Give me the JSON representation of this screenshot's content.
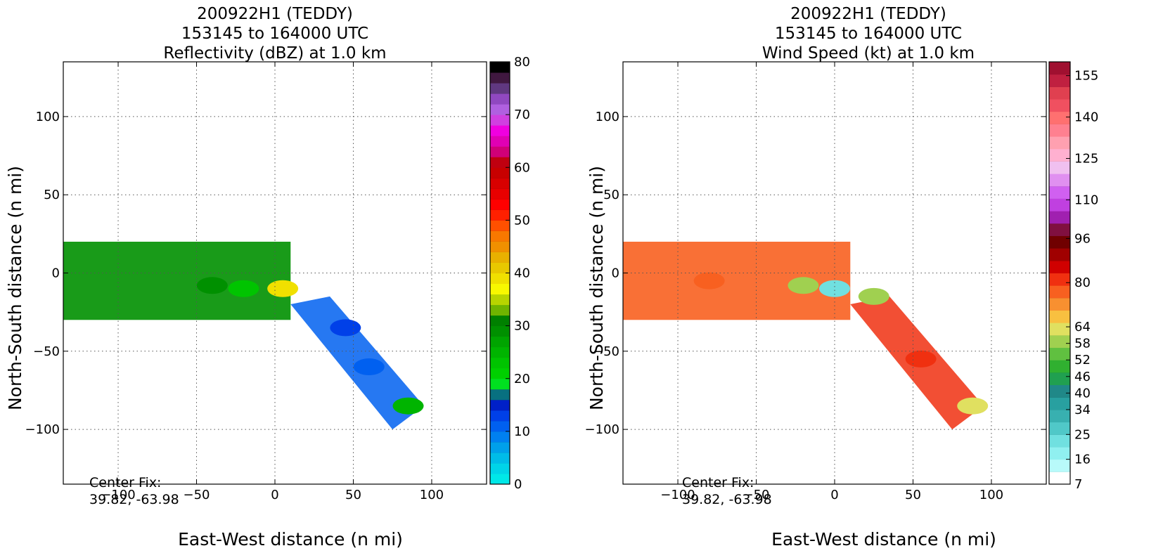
{
  "chart_data": [
    {
      "type": "heatmap",
      "title": [
        "200922H1 (TEDDY)",
        "153145 to 164000 UTC",
        "Reflectivity (dBZ) at 1.0 km"
      ],
      "xlabel": "East-West distance (n mi)",
      "ylabel": "North-South distance (n mi)",
      "xlim": [
        -135,
        135
      ],
      "ylim": [
        -135,
        135
      ],
      "xticks": [
        -100,
        -50,
        0,
        50,
        100
      ],
      "xtick_labels": [
        "−100",
        "−50",
        "0",
        "50",
        "100"
      ],
      "yticks": [
        100,
        50,
        0,
        -50,
        -100
      ],
      "ytick_labels": [
        "100",
        "50",
        "0",
        "−50",
        "−100"
      ],
      "grid": true,
      "annotation": [
        "Center Fix:",
        "39.82, -63.98"
      ],
      "colorbar": {
        "min": 0,
        "max": 80,
        "tick_values": [
          0,
          10,
          20,
          30,
          40,
          50,
          60,
          70,
          80
        ],
        "tick_labels": [
          "0",
          "10",
          "20",
          "30",
          "40",
          "50",
          "60",
          "70",
          "80"
        ],
        "colors": [
          "#00e8e8",
          "#00d4e8",
          "#00bce8",
          "#00a0ea",
          "#0080f0",
          "#0060f0",
          "#0040e8",
          "#0020c8",
          "#087080",
          "#00e020",
          "#00d000",
          "#00c400",
          "#00b400",
          "#00a400",
          "#009000",
          "#008000",
          "#70b400",
          "#b8d400",
          "#f8f800",
          "#f0e000",
          "#e8c800",
          "#e8b000",
          "#f09000",
          "#f87800",
          "#ff5000",
          "#ff2000",
          "#ff0000",
          "#e80000",
          "#d80000",
          "#c80000",
          "#c00010",
          "#d00078",
          "#e000b4",
          "#f000e0",
          "#d040e0",
          "#b060e0",
          "#9048c0",
          "#603880",
          "#401840",
          "#000000"
        ]
      },
      "data_region": {
        "band": {
          "x": [
            -135,
            10
          ],
          "y": [
            -30,
            20
          ]
        },
        "arm": {
          "x": [
            10,
            95
          ],
          "y": [
            -100,
            -20
          ]
        },
        "features": [
          {
            "x": -40,
            "y": -8,
            "value": 28
          },
          {
            "x": -20,
            "y": -10,
            "value": 22
          },
          {
            "x": 5,
            "y": -10,
            "value": 38
          },
          {
            "x": 45,
            "y": -35,
            "value": 12
          },
          {
            "x": 60,
            "y": -60,
            "value": 10
          },
          {
            "x": 85,
            "y": -85,
            "value": 25
          }
        ]
      }
    },
    {
      "type": "heatmap",
      "title": [
        "200922H1 (TEDDY)",
        "153145 to 164000 UTC",
        "Wind Speed (kt) at 1.0 km"
      ],
      "xlabel": "East-West distance (n mi)",
      "ylabel": "North-South distance (n mi)",
      "xlim": [
        -135,
        135
      ],
      "ylim": [
        -135,
        135
      ],
      "xticks": [
        -100,
        -50,
        0,
        50,
        100
      ],
      "xtick_labels": [
        "−100",
        "−50",
        "0",
        "50",
        "100"
      ],
      "yticks": [
        100,
        50,
        0,
        -50,
        -100
      ],
      "ytick_labels": [
        "100",
        "50",
        "0",
        "−50",
        "−100"
      ],
      "grid": true,
      "annotation": [
        "Center Fix:",
        "39.82, -63.98"
      ],
      "colorbar": {
        "min": 7,
        "max": 160,
        "tick_values": [
          7,
          16,
          25,
          34,
          40,
          46,
          52,
          58,
          64,
          80,
          96,
          110,
          125,
          140,
          155
        ],
        "tick_labels": [
          "7",
          "16",
          "25",
          "34",
          "40",
          "46",
          "52",
          "58",
          "64",
          "80",
          "96",
          "110",
          "125",
          "140",
          "155"
        ],
        "colors": [
          "#ffffff",
          "#b8fafa",
          "#90f0f0",
          "#70e0e0",
          "#50c8c8",
          "#38b0b0",
          "#28a0a0",
          "#208888",
          "#20a050",
          "#30b030",
          "#60c040",
          "#a0d050",
          "#e0e060",
          "#f8c040",
          "#f89030",
          "#f86020",
          "#f03010",
          "#d00000",
          "#a00000",
          "#700000",
          "#801040",
          "#a020b0",
          "#c040e0",
          "#d060f0",
          "#e090f0",
          "#f0c0f0",
          "#ffb0d0",
          "#ffa0b0",
          "#ff8090",
          "#ff7070",
          "#f05060",
          "#e04050",
          "#c02040",
          "#a01030"
        ]
      },
      "data_region": {
        "band": {
          "x": [
            -135,
            10
          ],
          "y": [
            -30,
            20
          ]
        },
        "arm": {
          "x": [
            10,
            95
          ],
          "y": [
            -100,
            -20
          ]
        },
        "features": [
          {
            "x": -80,
            "y": -5,
            "value": 75
          },
          {
            "x": -20,
            "y": -8,
            "value": 58
          },
          {
            "x": 0,
            "y": -10,
            "value": 22
          },
          {
            "x": 25,
            "y": -15,
            "value": 60
          },
          {
            "x": 55,
            "y": -55,
            "value": 80
          },
          {
            "x": 88,
            "y": -85,
            "value": 64
          }
        ]
      }
    }
  ]
}
